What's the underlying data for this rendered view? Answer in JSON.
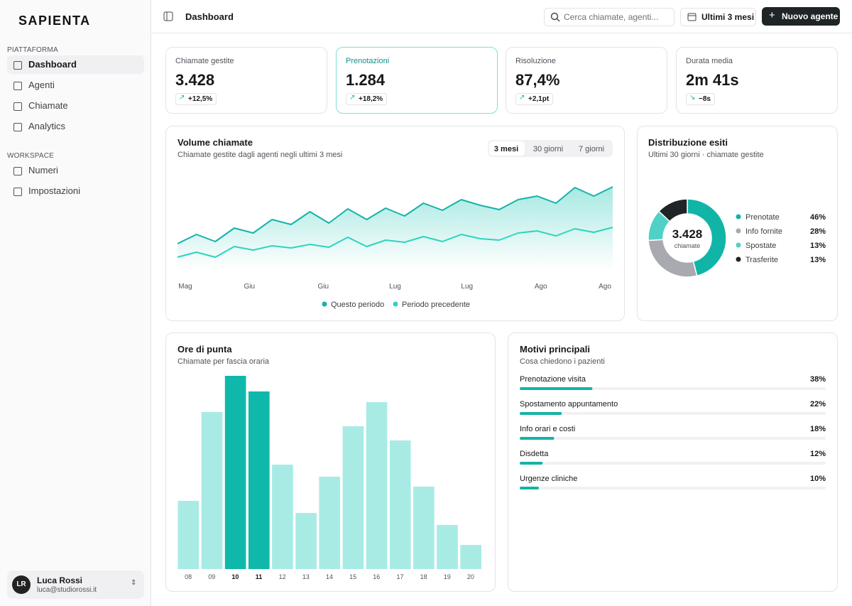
{
  "brand": "SAPIENTA",
  "sidebar": {
    "sections": [
      {
        "title": "PIATTAFORMA",
        "items": [
          "Dashboard",
          "Agenti",
          "Chiamate",
          "Analytics"
        ]
      },
      {
        "title": "WORKSPACE",
        "items": [
          "Numeri",
          "Impostazioni"
        ]
      }
    ]
  },
  "user": {
    "initials": "LR",
    "name": "Luca Rossi",
    "email": "luca@studiorossi.it"
  },
  "header": {
    "title": "Dashboard",
    "search_placeholder": "Cerca chiamate, agenti...",
    "range": "Ultimi 3 mesi",
    "button": "Nuovo agente"
  },
  "kpis": [
    {
      "label": "Chiamate gestite",
      "value": "3.428",
      "delta": "+12,5%"
    },
    {
      "label": "Prenotazioni",
      "value": "1.284",
      "delta": "+18,2%"
    },
    {
      "label": "Risoluzione",
      "value": "87,4%",
      "delta": "+2,1pt"
    },
    {
      "label": "Durata media",
      "value": "2m 41s",
      "delta": "−8s"
    }
  ],
  "chart_data": [
    {
      "type": "line",
      "title": "Volume chiamate",
      "subtitle": "Chiamate gestite dagli agenti negli ultimi 3 mesi",
      "tabs": [
        "3 mesi",
        "30 giorni",
        "7 giorni"
      ],
      "xlim": [
        0,
        23
      ],
      "xticks": [
        {
          "value": 0,
          "label": "Mag"
        },
        {
          "value": 3.8,
          "label": "Giu"
        },
        {
          "value": 7.7,
          "label": "Giu"
        },
        {
          "value": 11.5,
          "label": "Lug"
        },
        {
          "value": 15.3,
          "label": "Lug"
        },
        {
          "value": 19.2,
          "label": "Ago"
        },
        {
          "value": 23,
          "label": "Ago"
        }
      ],
      "ylim": [
        0,
        140
      ],
      "series": [
        {
          "name": "Questo periodo",
          "color": "#14b3a8",
          "values": [
            57,
            70,
            60,
            79,
            72,
            91,
            84,
            102,
            86,
            106,
            91,
            107,
            96,
            114,
            104,
            119,
            111,
            105,
            119,
            124,
            114,
            136,
            124,
            137
          ]
        },
        {
          "name": "Periodo precedente",
          "color": "#2dd4bf",
          "values": [
            38,
            45,
            38,
            53,
            48,
            54,
            51,
            56,
            52,
            66,
            53,
            62,
            59,
            67,
            60,
            70,
            64,
            62,
            72,
            75,
            68,
            78,
            73,
            80
          ]
        }
      ]
    },
    {
      "type": "pie",
      "title": "Distribuzione esiti",
      "subtitle": "Ultimi 30 giorni · chiamate gestite",
      "center_value": "3.428",
      "center_label": "chiamate",
      "categories": [
        "Prenotate",
        "Info fornite",
        "Spostate",
        "Trasferite"
      ],
      "values": [
        46,
        28,
        13,
        13
      ],
      "value_labels": [
        "46%",
        "28%",
        "13%",
        "13%"
      ],
      "colors": [
        "#11b5a8",
        "#a9a9b0",
        "#4fd1c5",
        "#1f2526"
      ]
    },
    {
      "type": "bar",
      "title": "Ore di punta",
      "subtitle": "Chiamate per fascia oraria",
      "categories": [
        "08",
        "09",
        "10",
        "11",
        "12",
        "13",
        "14",
        "15",
        "16",
        "17",
        "18",
        "19",
        "20"
      ],
      "values": [
        96,
        221,
        272,
        250,
        147,
        79,
        130,
        201,
        235,
        181,
        116,
        62,
        34
      ],
      "colors": [
        "#a8ebe5",
        "#a8ebe5",
        "#0fb8ab",
        "#0fb8ab",
        "#a8ebe5",
        "#a8ebe5",
        "#a8ebe5",
        "#a8ebe5",
        "#a8ebe5",
        "#a8ebe5",
        "#a8ebe5",
        "#a8ebe5",
        "#a8ebe5"
      ],
      "ylim": [
        0,
        280
      ]
    },
    {
      "type": "hbar",
      "title": "Motivi principali",
      "subtitle": "Cosa chiedono i pazienti",
      "categories": [
        "Prenotazione visita",
        "Spostamento appuntamento",
        "Info orari e costi",
        "Disdetta",
        "Urgenze cliniche"
      ],
      "values": [
        38,
        22,
        18,
        12,
        10
      ],
      "value_labels": [
        "38%",
        "22%",
        "18%",
        "12%",
        "10%"
      ],
      "xlim": [
        0,
        160
      ],
      "color": "#14b3a8"
    }
  ]
}
